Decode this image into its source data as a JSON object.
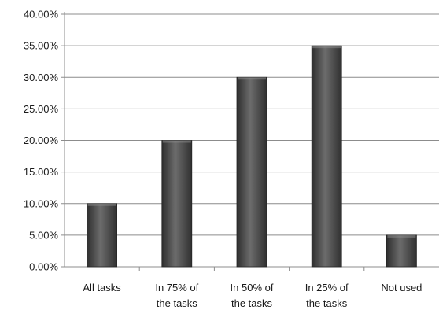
{
  "chart_data": {
    "type": "bar",
    "title": "",
    "xlabel": "",
    "ylabel": "",
    "categories": [
      [
        "All tasks"
      ],
      [
        "In 75% of",
        "the tasks"
      ],
      [
        "In 50% of",
        "the tasks"
      ],
      [
        "In 25% of",
        "the tasks"
      ],
      [
        "Not used"
      ]
    ],
    "values": [
      10,
      20,
      30,
      35,
      5
    ],
    "ylim": [
      0,
      40
    ],
    "yticks": [
      "0.00%",
      "5.00%",
      "10.00%",
      "15.00%",
      "20.00%",
      "25.00%",
      "30.00%",
      "35.00%",
      "40.00%"
    ],
    "grid": true,
    "legend": "none",
    "colors": {
      "bar_dark": "#3a3a3a",
      "bar_light": "#6e6e6e",
      "grid": "#8c8c8c",
      "axis": "#8c8c8c"
    }
  }
}
